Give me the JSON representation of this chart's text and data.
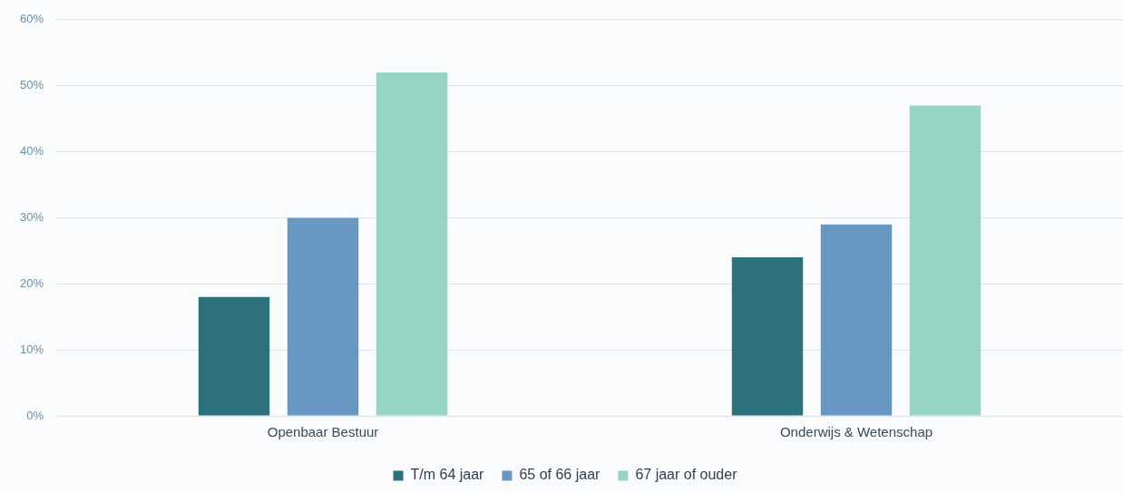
{
  "chart_data": {
    "type": "bar",
    "categories": [
      "Openbaar Bestuur",
      "Onderwijs & Wetenschap"
    ],
    "series": [
      {
        "name": "T/m 64 jaar",
        "color": "#2c717c",
        "values": [
          18,
          24
        ]
      },
      {
        "name": "65 of 66 jaar",
        "color": "#6897c1",
        "values": [
          30,
          29
        ]
      },
      {
        "name": "67 jaar of ouder",
        "color": "#96d4c3",
        "values": [
          52,
          47
        ]
      }
    ],
    "ylim": [
      0,
      60
    ],
    "yticks": [
      {
        "value": 0,
        "label": "0%"
      },
      {
        "value": 10,
        "label": "10%"
      },
      {
        "value": 20,
        "label": "20%"
      },
      {
        "value": 30,
        "label": "30%"
      },
      {
        "value": 40,
        "label": "40%"
      },
      {
        "value": 50,
        "label": "50%"
      },
      {
        "value": 60,
        "label": "60%"
      }
    ],
    "grid": "y",
    "legend": "bottom"
  }
}
